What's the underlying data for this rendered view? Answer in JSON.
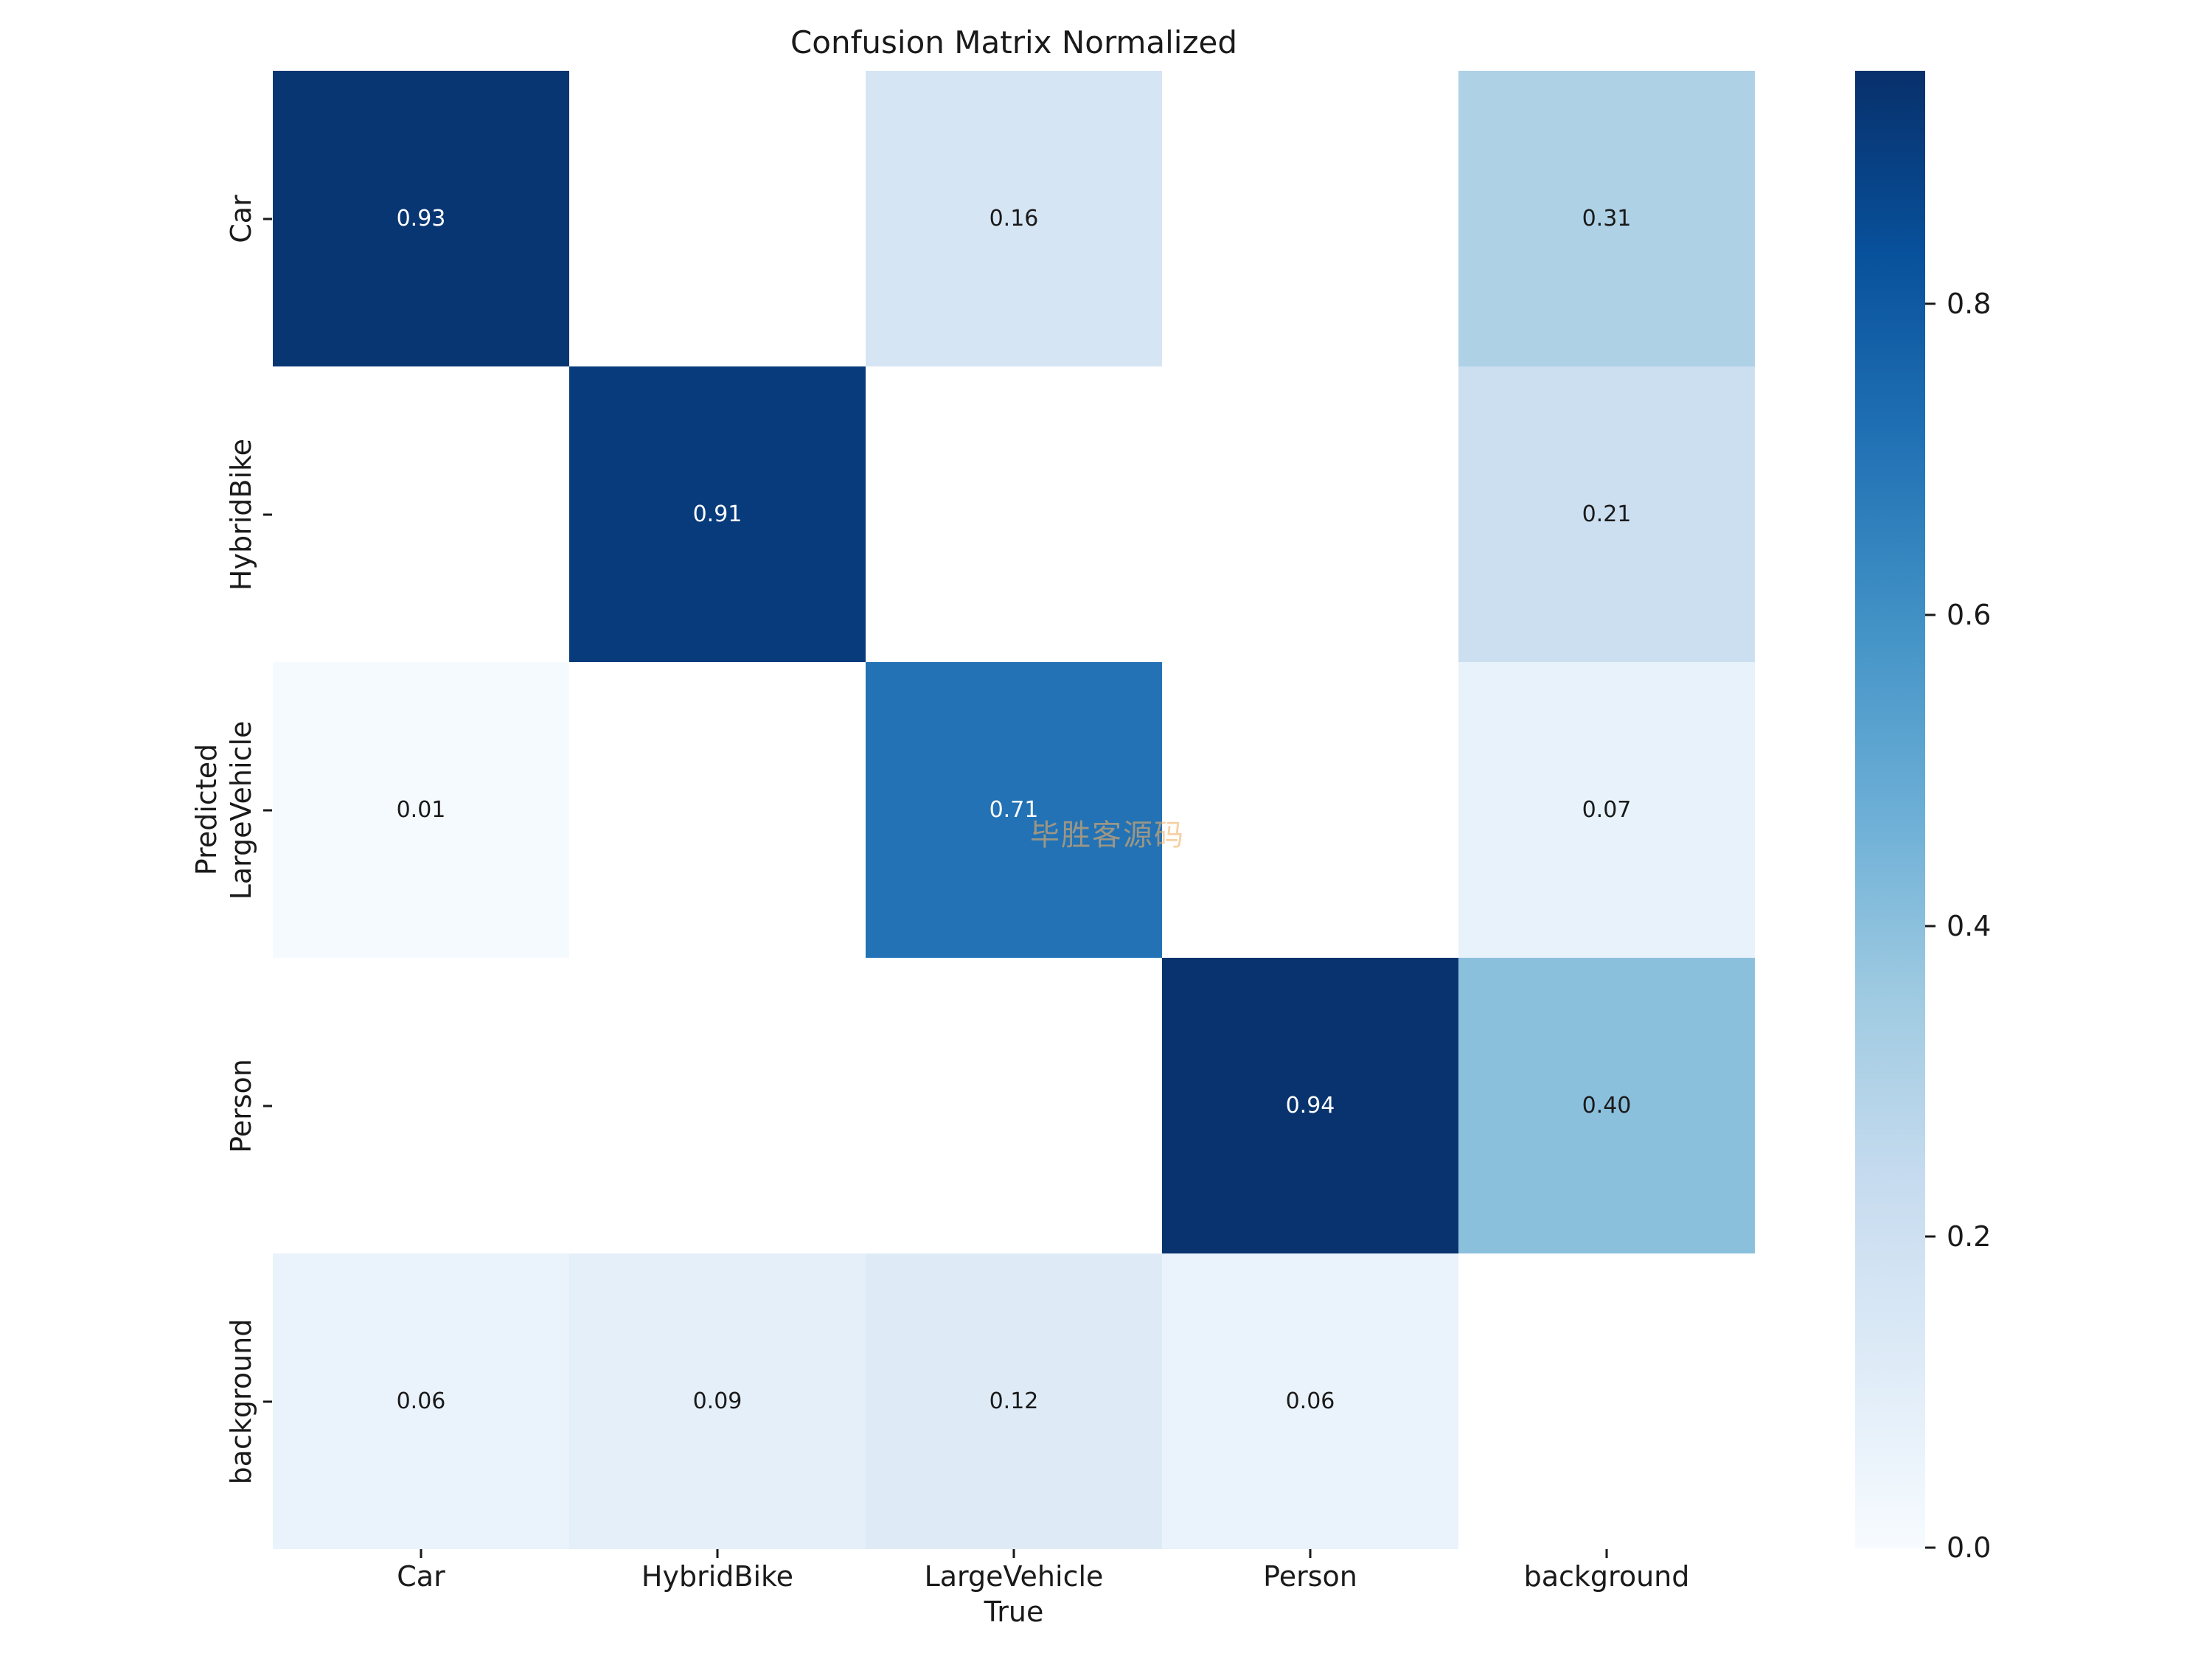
{
  "figure": {
    "background_color": "#ffffff"
  },
  "watermark": {
    "text": "毕胜客源码",
    "color": "rgba(240,175,100,0.59)"
  },
  "chart_data": {
    "type": "heatmap",
    "title": "Confusion Matrix Normalized",
    "xlabel": "True",
    "ylabel": "Predicted",
    "x_categories": [
      "Car",
      "HybridBike",
      "LargeVehicle",
      "Person",
      "background"
    ],
    "y_categories": [
      "Car",
      "HybridBike",
      "LargeVehicle",
      "Person",
      "background"
    ],
    "matrix": [
      [
        0.93,
        null,
        0.16,
        null,
        0.31
      ],
      [
        null,
        0.91,
        null,
        null,
        0.21
      ],
      [
        0.01,
        null,
        0.71,
        null,
        0.07
      ],
      [
        null,
        null,
        null,
        0.94,
        0.4
      ],
      [
        0.06,
        0.09,
        0.12,
        0.06,
        null
      ]
    ],
    "value_format_decimals": 2,
    "vmin": 0.0,
    "vmax": 0.95,
    "colormap": "Blues",
    "colormap_stops": [
      "#f7fbff",
      "#deebf7",
      "#c6dbef",
      "#9ecae1",
      "#6baed6",
      "#4292c6",
      "#2171b5",
      "#08519c",
      "#08306b"
    ],
    "empty_cell_color": "#ffffff",
    "annot_color_light": "#ffffff",
    "annot_color_dark": "#1a1a1a",
    "annot_light_threshold": 0.5,
    "grid": false,
    "colorbar": {
      "position": "right",
      "tick_values": [
        0.8,
        0.6,
        0.4,
        0.2,
        0.0
      ],
      "tick_labels": [
        "0.8",
        "0.6",
        "0.4",
        "0.2",
        "0.0"
      ]
    }
  }
}
